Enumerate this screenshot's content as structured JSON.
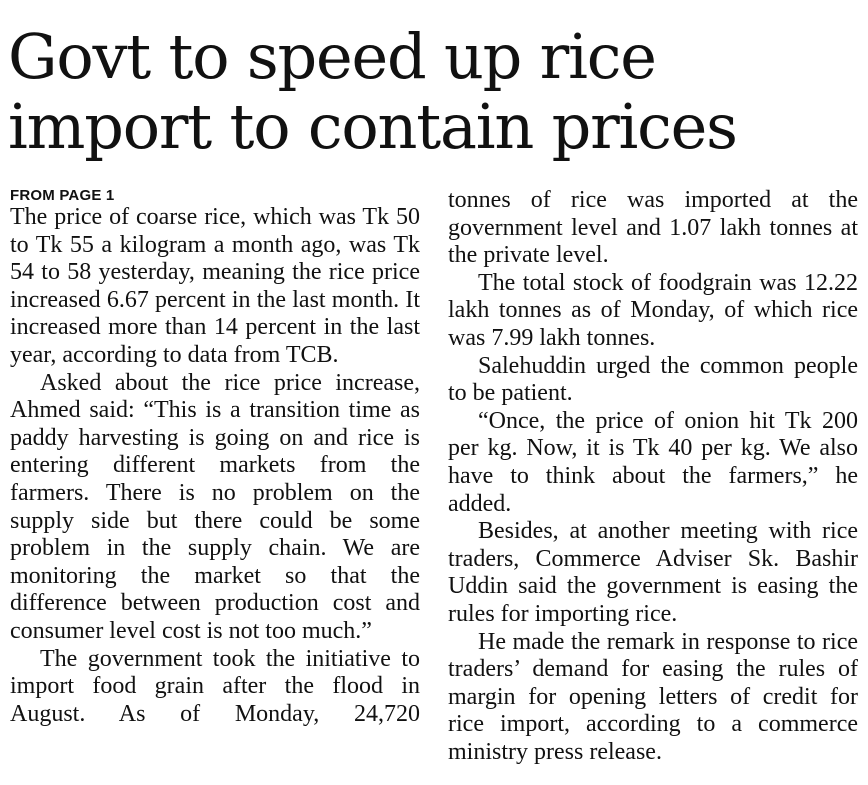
{
  "article": {
    "headline": "Govt to speed up rice import to contain prices",
    "kicker": "FROM PAGE 1",
    "left_column": [
      "The price of coarse rice, which was Tk 50 to Tk 55 a kilogram a month ago, was Tk 54 to 58 yesterday, meaning the rice price increased 6.67 percent in the last month. It increased more than 14 percent in the last year, according to data from TCB.",
      "Asked about the rice price increase, Ahmed said: “This is a transition time as paddy harvesting is going on and rice is entering different markets from the farmers. There is no problem on the supply side but there could be some problem in the supply chain. We are monitoring the market so that the difference between production cost and consumer level cost is not too much.”",
      "The government took the initiative to import food grain after the flood in August. As of Monday, 24,720"
    ],
    "right_column": [
      "tonnes of rice was imported at the government level and 1.07 lakh tonnes at the private level.",
      "The total stock of foodgrain was 12.22 lakh tonnes as of Monday, of which rice was 7.99 lakh tonnes.",
      "Salehuddin urged the common people to be patient.",
      "“Once, the price of onion hit Tk 200 per kg. Now, it is Tk 40 per kg. We also have to think about the farmers,” he added.",
      "Besides, at another meeting with rice traders, Commerce Adviser Sk. Bashir Uddin said the government is easing the rules for importing rice.",
      "He made the remark in response to rice traders’ demand for easing the rules of margin for opening letters of credit for rice import, according to a commerce ministry press release."
    ]
  }
}
